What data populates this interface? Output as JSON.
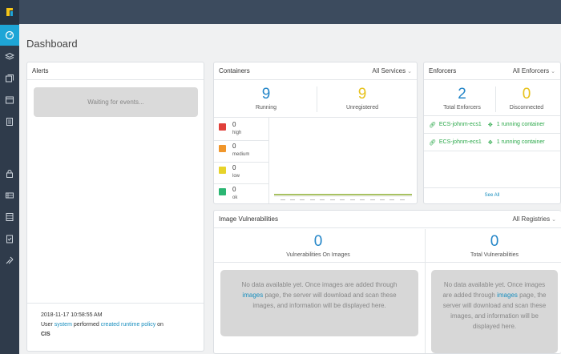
{
  "page": {
    "title": "Dashboard"
  },
  "colors": {
    "topbar": "#3c4b5e",
    "rail": "#2f3b4b",
    "accent": "#1ea5d6",
    "link": "#1a8fbf",
    "high": "#e0403a",
    "medium": "#f0962b",
    "low": "#e7d32a",
    "ok": "#2bb673"
  },
  "rail": {
    "icons": [
      "logo-icon",
      "dashboard-icon",
      "layers-icon",
      "images-icon",
      "windows-icon",
      "report-icon",
      "lock-icon",
      "servers-icon",
      "database-icon",
      "clipboard-check-icon",
      "tools-icon"
    ]
  },
  "alerts": {
    "title": "Alerts",
    "waiting": "Waiting for events...",
    "event": {
      "timestamp": "2018-11-17 10:58:55 AM",
      "prefix": "User",
      "user": "system",
      "verb": "performed",
      "action": "created runtime policy",
      "on": "on",
      "target": "CIS"
    }
  },
  "containers": {
    "title": "Containers",
    "filter": "All Services",
    "running": {
      "value": "9",
      "label": "Running"
    },
    "unregistered": {
      "value": "9",
      "label": "Unregistered"
    },
    "severities": [
      {
        "count": "0",
        "label": "high",
        "color": "#e0403a"
      },
      {
        "count": "0",
        "label": "medium",
        "color": "#f0962b"
      },
      {
        "count": "0",
        "label": "low",
        "color": "#e7d32a"
      },
      {
        "count": "0",
        "label": "ok",
        "color": "#2bb673"
      }
    ]
  },
  "enforcers": {
    "title": "Enforcers",
    "filter": "All Enforcers",
    "total": {
      "value": "2",
      "label": "Total Enforcers"
    },
    "disconnected": {
      "value": "0",
      "label": "Disconnected"
    },
    "rows": [
      {
        "name": "ECS-johnm-ecs1",
        "status": "1 running container"
      },
      {
        "name": "ECS-johnm-ecs1",
        "status": "1 running container"
      }
    ],
    "see_all": "See All"
  },
  "vulnerabilities": {
    "title": "Image Vulnerabilities",
    "filter": "All Registries",
    "on_images": {
      "value": "0",
      "label": "Vulnerabilities On Images"
    },
    "total": {
      "value": "0",
      "label": "Total Vulnerabilities"
    },
    "nodata_a": "No data available yet. Once images are added through",
    "nodata_link": "images",
    "nodata_b": "page, the server will download and scan these images, and information will be displayed here."
  }
}
